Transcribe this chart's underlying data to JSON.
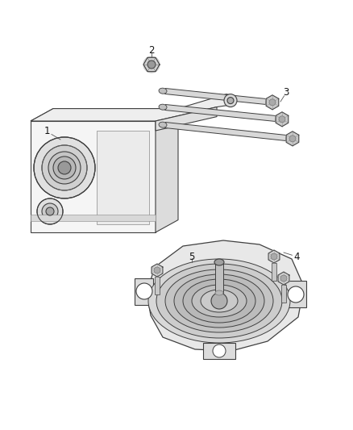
{
  "background_color": "#ffffff",
  "line_color": "#404040",
  "label_color": "#111111",
  "fig_width": 4.38,
  "fig_height": 5.33,
  "dpi": 100,
  "label_fontsize": 8.5
}
